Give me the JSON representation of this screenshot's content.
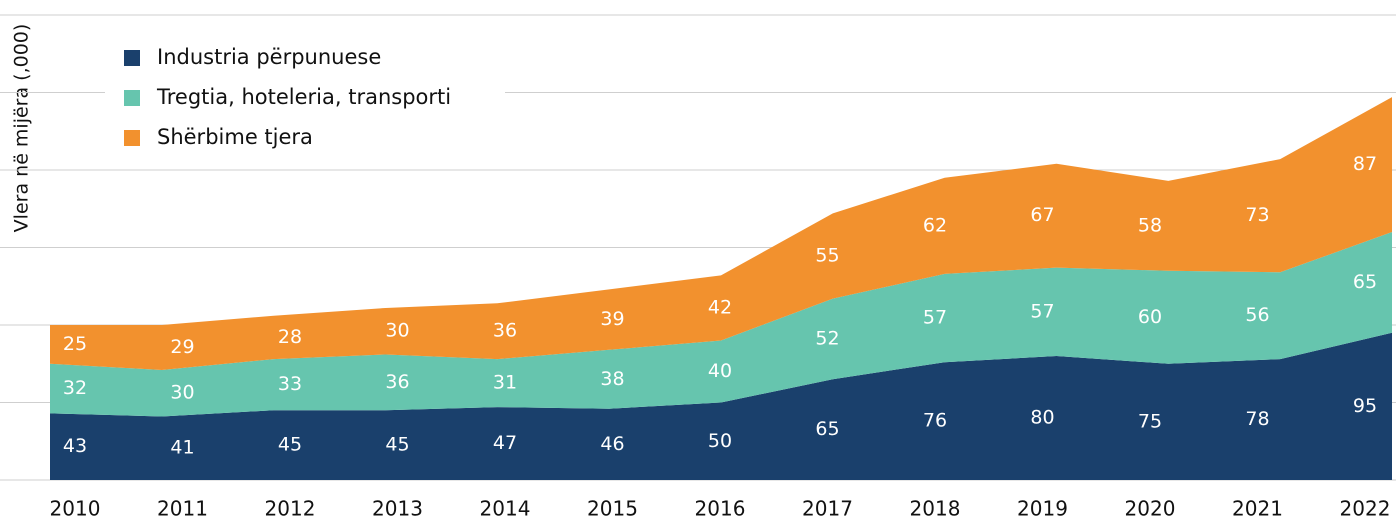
{
  "chart_data": {
    "type": "stacked_area",
    "y_label": "Vlera në mijëra (,000)",
    "categories": [
      "2010",
      "2011",
      "2012",
      "2013",
      "2014",
      "2015",
      "2016",
      "2017",
      "2018",
      "2019",
      "2020",
      "2021",
      "2022"
    ],
    "series": [
      {
        "name": "Industria përpunuese",
        "color": "#1a406c",
        "values": [
          43,
          41,
          45,
          45,
          47,
          46,
          50,
          65,
          76,
          80,
          75,
          78,
          95
        ]
      },
      {
        "name": "Tregtia, hoteleria, transporti",
        "color": "#66c5ae",
        "values": [
          32,
          30,
          33,
          36,
          31,
          38,
          40,
          52,
          57,
          57,
          60,
          56,
          65
        ]
      },
      {
        "name": "Shërbime tjera",
        "color": "#f2912e",
        "values": [
          25,
          29,
          28,
          30,
          36,
          39,
          42,
          55,
          62,
          67,
          58,
          73,
          87
        ]
      }
    ],
    "ylim": [
      0,
      300
    ],
    "yticks": [
      0,
      50,
      100,
      150,
      200,
      250,
      300
    ],
    "grid": true
  }
}
